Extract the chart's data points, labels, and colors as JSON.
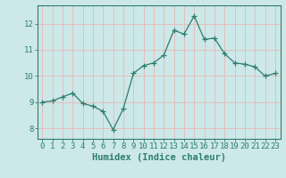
{
  "x": [
    0,
    1,
    2,
    3,
    4,
    5,
    6,
    7,
    8,
    9,
    10,
    11,
    12,
    13,
    14,
    15,
    16,
    17,
    18,
    19,
    20,
    21,
    22,
    23
  ],
  "y": [
    9.0,
    9.05,
    9.2,
    9.35,
    8.95,
    8.85,
    8.65,
    7.95,
    8.75,
    10.1,
    10.4,
    10.5,
    10.8,
    11.75,
    11.6,
    12.3,
    11.4,
    11.45,
    10.85,
    10.5,
    10.45,
    10.35,
    10.0,
    10.1
  ],
  "line_color": "#2e7d6e",
  "marker": "+",
  "marker_size": 4,
  "bg_color": "#cce8e8",
  "grid_color": "#e8b8b8",
  "xlabel": "Humidex (Indice chaleur)",
  "xlabel_fontsize": 7.5,
  "tick_fontsize": 6.5,
  "ylabel_ticks": [
    8,
    9,
    10,
    11,
    12
  ],
  "ylim": [
    7.6,
    12.7
  ],
  "xlim": [
    -0.5,
    23.5
  ]
}
